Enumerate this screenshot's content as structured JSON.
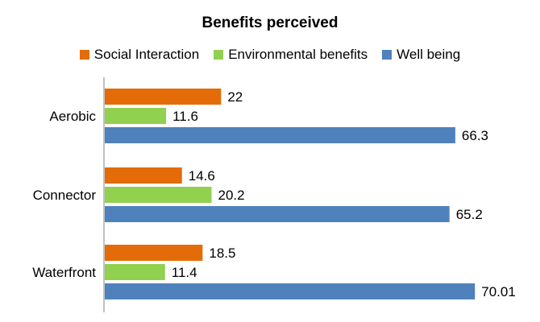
{
  "chart_data": {
    "type": "bar",
    "orientation": "horizontal",
    "title": "Benefits perceived",
    "categories": [
      "Aerobic",
      "Connector",
      "Waterfront"
    ],
    "series": [
      {
        "name": "Social Interaction",
        "color": "#E36C09",
        "values": [
          22,
          14.6,
          18.5
        ],
        "labels": [
          "22",
          "14.6",
          "18.5"
        ]
      },
      {
        "name": "Environmental benefits",
        "color": "#92D050",
        "values": [
          11.6,
          20.2,
          11.4
        ],
        "labels": [
          "11.6",
          "20.2",
          "11.4"
        ]
      },
      {
        "name": "Well being",
        "color": "#4F81BD",
        "values": [
          66.3,
          65.2,
          70.01
        ],
        "labels": [
          "66.3",
          "65.2",
          "70.01"
        ]
      }
    ],
    "xlim": [
      0,
      75
    ],
    "grid": false,
    "legend_position": "top"
  }
}
